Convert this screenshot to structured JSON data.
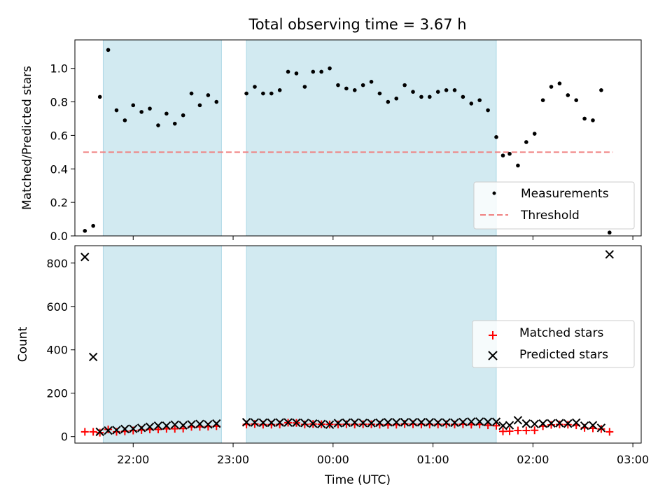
{
  "chart_data": {
    "title": "Total observing time = 3.67 h",
    "type": "scatter",
    "x_unit": "Time (UTC)",
    "x_range": [
      "21:25",
      "03:05"
    ],
    "observing_windows": [
      [
        "21:42",
        "22:53"
      ],
      [
        "23:08",
        "01:38"
      ]
    ],
    "window_color": "#add8e6",
    "x_tick_labels": [
      "22:00",
      "23:00",
      "00:00",
      "01:00",
      "02:00",
      "03:00"
    ],
    "top": {
      "ylabel": "Matched/Predicted stars",
      "ylim": [
        0,
        1.17
      ],
      "y_ticks": [
        "0.0",
        "0.2",
        "0.4",
        "0.6",
        "0.8",
        "1.0"
      ],
      "threshold": {
        "value": 0.5,
        "from": "21:30",
        "to": "02:48",
        "color": "#f08080"
      },
      "legend": [
        "Measurements",
        "Threshold"
      ],
      "legend_position": "lower right",
      "measurements": {
        "x": [
          "21:31",
          "21:36",
          "21:40",
          "21:45",
          "21:50",
          "21:55",
          "22:00",
          "22:05",
          "22:10",
          "22:15",
          "22:20",
          "22:25",
          "22:30",
          "22:35",
          "22:40",
          "22:45",
          "22:50",
          "23:08",
          "23:13",
          "23:18",
          "23:23",
          "23:28",
          "23:33",
          "23:38",
          "23:43",
          "23:48",
          "23:53",
          "23:58",
          "00:03",
          "00:08",
          "00:13",
          "00:18",
          "00:23",
          "00:28",
          "00:33",
          "00:38",
          "00:43",
          "00:48",
          "00:53",
          "00:58",
          "01:03",
          "01:08",
          "01:13",
          "01:18",
          "01:23",
          "01:28",
          "01:33",
          "01:38",
          "01:42",
          "01:46",
          "01:51",
          "01:56",
          "02:01",
          "02:06",
          "02:11",
          "02:16",
          "02:21",
          "02:26",
          "02:31",
          "02:36",
          "02:41",
          "02:46"
        ],
        "y": [
          0.03,
          0.06,
          0.83,
          1.11,
          0.75,
          0.69,
          0.78,
          0.74,
          0.76,
          0.66,
          0.73,
          0.67,
          0.72,
          0.85,
          0.78,
          0.84,
          0.8,
          0.85,
          0.89,
          0.85,
          0.85,
          0.87,
          0.98,
          0.97,
          0.89,
          0.98,
          0.98,
          1.0,
          0.9,
          0.88,
          0.87,
          0.9,
          0.92,
          0.85,
          0.8,
          0.82,
          0.9,
          0.86,
          0.83,
          0.83,
          0.86,
          0.87,
          0.87,
          0.83,
          0.79,
          0.81,
          0.75,
          0.59,
          0.48,
          0.49,
          0.42,
          0.56,
          0.61,
          0.81,
          0.89,
          0.91,
          0.84,
          0.81,
          0.7,
          0.69,
          0.87,
          0.02
        ],
        "color": "#000000"
      }
    },
    "bottom": {
      "xlabel": "Time (UTC)",
      "ylabel": "Count",
      "ylim": [
        -30,
        880
      ],
      "y_ticks": [
        "0",
        "200",
        "400",
        "600",
        "800"
      ],
      "legend": [
        "Matched stars",
        "Predicted stars"
      ],
      "legend_position": "center right",
      "series": [
        {
          "name": "Matched stars",
          "marker": "plus",
          "color": "#ff0000",
          "x": [
            "21:31",
            "21:36",
            "21:40",
            "21:45",
            "21:50",
            "21:55",
            "22:00",
            "22:05",
            "22:10",
            "22:15",
            "22:20",
            "22:25",
            "22:30",
            "22:35",
            "22:40",
            "22:45",
            "22:50",
            "23:08",
            "23:13",
            "23:18",
            "23:23",
            "23:28",
            "23:33",
            "23:38",
            "23:43",
            "23:48",
            "23:53",
            "23:58",
            "00:03",
            "00:08",
            "00:13",
            "00:18",
            "00:23",
            "00:28",
            "00:33",
            "00:38",
            "00:43",
            "00:48",
            "00:53",
            "00:58",
            "01:03",
            "01:08",
            "01:13",
            "01:18",
            "01:23",
            "01:28",
            "01:33",
            "01:38",
            "01:42",
            "01:46",
            "01:51",
            "01:56",
            "02:01",
            "02:06",
            "02:11",
            "02:16",
            "02:21",
            "02:26",
            "02:31",
            "02:36",
            "02:41",
            "02:46"
          ],
          "y": [
            22,
            22,
            18,
            33,
            22,
            24,
            28,
            30,
            33,
            33,
            36,
            36,
            37,
            45,
            45,
            46,
            48,
            56,
            58,
            55,
            55,
            56,
            64,
            63,
            56,
            58,
            57,
            56,
            56,
            57,
            56,
            57,
            57,
            55,
            54,
            55,
            58,
            57,
            56,
            56,
            56,
            57,
            56,
            57,
            55,
            56,
            52,
            50,
            24,
            25,
            28,
            28,
            29,
            48,
            54,
            56,
            55,
            52,
            40,
            38,
            35,
            22
          ]
        },
        {
          "name": "Predicted stars",
          "marker": "x",
          "color": "#000000",
          "x": [
            "21:31",
            "21:36",
            "21:40",
            "21:45",
            "21:50",
            "21:55",
            "22:00",
            "22:05",
            "22:10",
            "22:15",
            "22:20",
            "22:25",
            "22:30",
            "22:35",
            "22:40",
            "22:45",
            "22:50",
            "23:08",
            "23:13",
            "23:18",
            "23:23",
            "23:28",
            "23:33",
            "23:38",
            "23:43",
            "23:48",
            "23:53",
            "23:58",
            "00:03",
            "00:08",
            "00:13",
            "00:18",
            "00:23",
            "00:28",
            "00:33",
            "00:38",
            "00:43",
            "00:48",
            "00:53",
            "00:58",
            "01:03",
            "01:08",
            "01:13",
            "01:18",
            "01:23",
            "01:28",
            "01:33",
            "01:38",
            "01:42",
            "01:46",
            "01:51",
            "01:56",
            "02:01",
            "02:06",
            "02:11",
            "02:16",
            "02:21",
            "02:26",
            "02:31",
            "02:36",
            "02:41",
            "02:46"
          ],
          "y": [
            828,
            367,
            22,
            28,
            30,
            35,
            36,
            40,
            45,
            50,
            50,
            55,
            52,
            56,
            58,
            56,
            60,
            66,
            65,
            64,
            64,
            65,
            65,
            64,
            63,
            60,
            58,
            55,
            62,
            64,
            65,
            63,
            62,
            64,
            66,
            66,
            66,
            66,
            66,
            66,
            65,
            65,
            64,
            67,
            69,
            69,
            68,
            68,
            50,
            52,
            75,
            60,
            58,
            60,
            61,
            62,
            60,
            64,
            50,
            52,
            40,
            840
          ]
        }
      ]
    }
  }
}
